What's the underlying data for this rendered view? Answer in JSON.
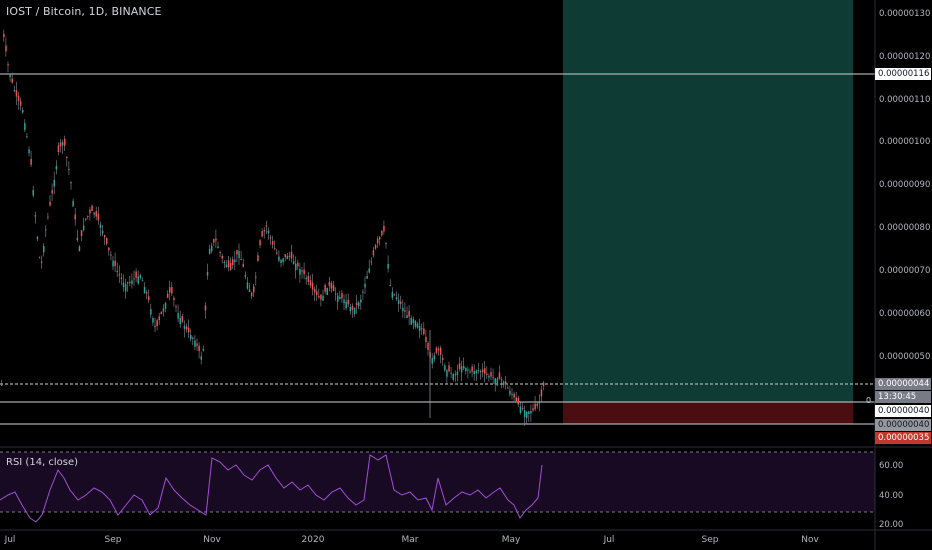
{
  "header": {
    "title": "IOST / Bitcoin, 1D, BINANCE"
  },
  "rsi": {
    "title": "RSI (14, close)",
    "levels": [
      60.0,
      40.0,
      20.0
    ],
    "level_labels": [
      "60.00",
      "40.00",
      "20.00"
    ]
  },
  "price_axis": {
    "labels": [
      "0.00000130",
      "0.00000120",
      "0.00000110",
      "0.00000100",
      "0.00000090",
      "0.00000080",
      "0.00000070",
      "0.00000060",
      "0.00000050"
    ],
    "values": [
      130,
      120,
      110,
      100,
      90,
      80,
      70,
      60,
      50
    ]
  },
  "tags": {
    "upper_line": "0.00000116",
    "target": "0.00000044",
    "countdown": "13:30:45",
    "current": "0.00000040",
    "stop_line": "0.00000040",
    "stop": "0.00000035",
    "flag_char": "0"
  },
  "time_axis": {
    "labels": [
      "Jul",
      "Sep",
      "Nov",
      "2020",
      "Mar",
      "May",
      "Jul",
      "Sep",
      "Nov"
    ]
  },
  "colors": {
    "bg": "#000000",
    "up": "#26a69a",
    "down": "#ef5350",
    "rsi": "#a14fd6",
    "profit": "#0e3c35",
    "loss": "#4a0e10",
    "rsi_band": "#190a23"
  }
}
